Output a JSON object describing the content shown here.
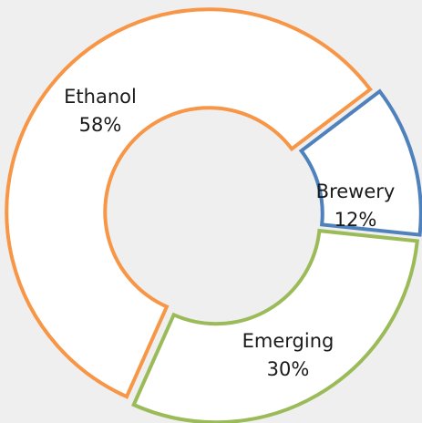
{
  "chart_data": {
    "type": "donut",
    "categories": [
      "Ethanol",
      "Brewery",
      "Emerging"
    ],
    "values": [
      58,
      12,
      30
    ],
    "value_labels": [
      "58%",
      "12%",
      "30%"
    ],
    "colors": [
      "#f79646",
      "#4f81bd",
      "#9bbb59"
    ]
  }
}
